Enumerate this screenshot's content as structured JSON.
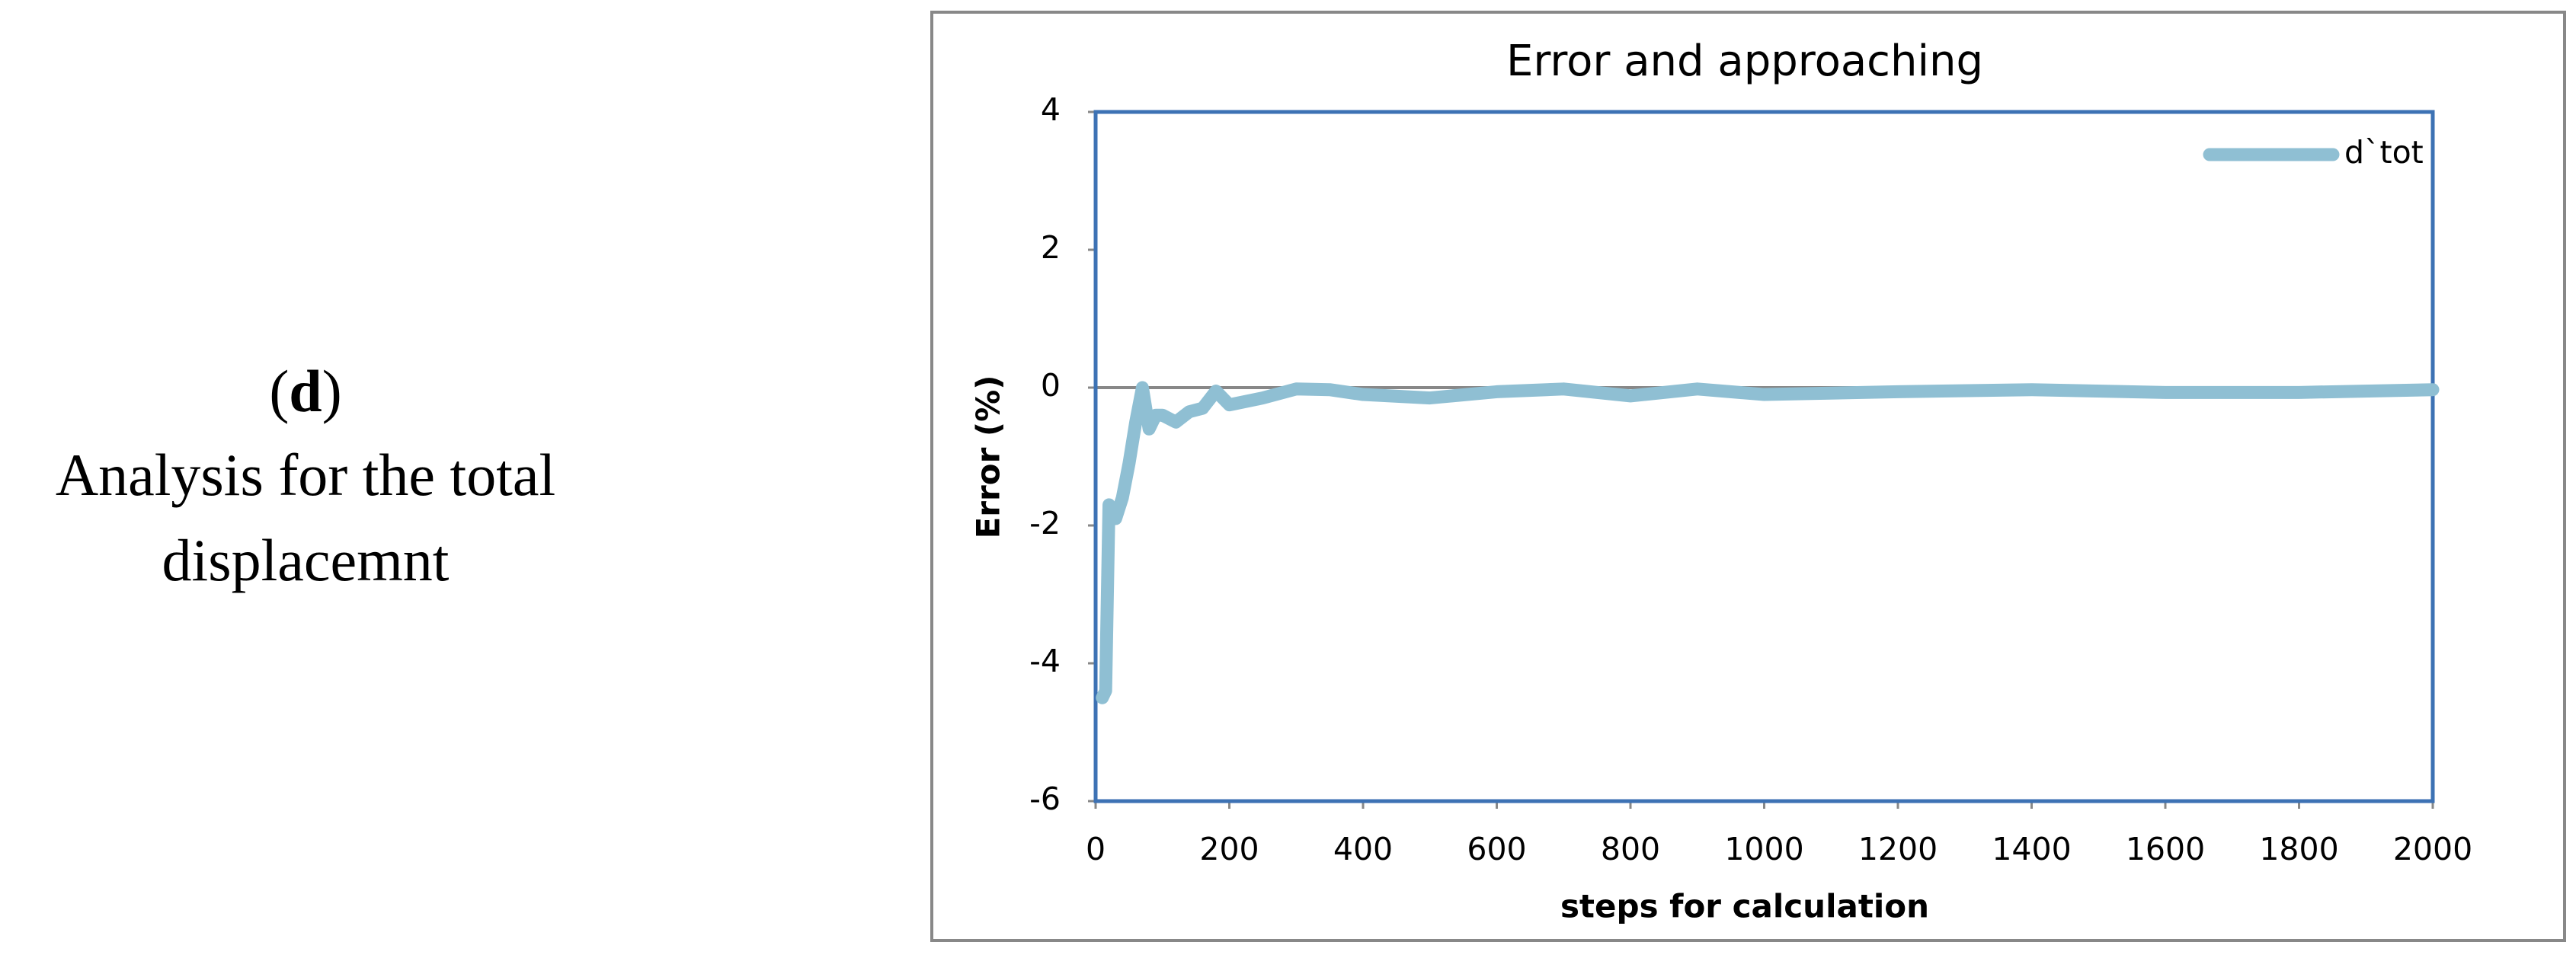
{
  "caption": {
    "label_open": "(",
    "label": "d",
    "label_close": ")",
    "lines": [
      "Analysis for the total",
      "displacemnt"
    ]
  },
  "chart_data": {
    "type": "line",
    "title": "Error and approaching",
    "x_label": "steps for calculation",
    "y_label": "Error (%)",
    "x": [
      10,
      15,
      20,
      30,
      40,
      50,
      60,
      70,
      80,
      90,
      100,
      120,
      140,
      160,
      180,
      200,
      250,
      300,
      350,
      400,
      500,
      600,
      700,
      800,
      900,
      1000,
      1200,
      1400,
      1600,
      1800,
      2000
    ],
    "series": [
      {
        "name": "d`tot",
        "color": "#8fbfd3",
        "values": [
          -4.5,
          -4.4,
          -1.7,
          -1.9,
          -1.6,
          -1.1,
          -0.5,
          0.0,
          -0.6,
          -0.4,
          -0.4,
          -0.5,
          -0.35,
          -0.3,
          -0.05,
          -0.25,
          -0.15,
          -0.02,
          -0.03,
          -0.1,
          -0.15,
          -0.06,
          -0.02,
          -0.12,
          -0.02,
          -0.1,
          -0.06,
          -0.03,
          -0.07,
          -0.07,
          -0.03
        ]
      }
    ],
    "xlim": [
      0,
      2000
    ],
    "xticks": [
      0,
      200,
      400,
      600,
      800,
      1000,
      1200,
      1400,
      1600,
      1800,
      2000
    ],
    "ylim": [
      -6,
      4
    ],
    "yticks": [
      -6,
      -4,
      -2,
      0,
      2,
      4
    ],
    "legend": "top-right"
  }
}
